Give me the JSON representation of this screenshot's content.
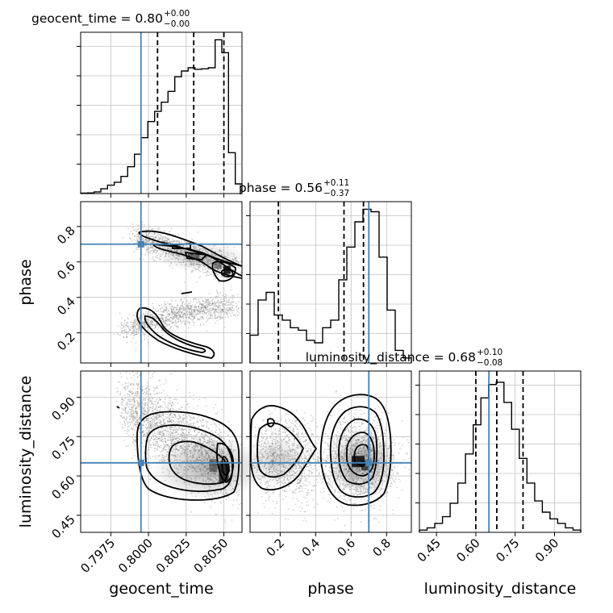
{
  "chart_data": {
    "type": "corner",
    "parameters": [
      "geocent_time",
      "phase",
      "luminosity_distance"
    ],
    "truths": {
      "geocent_time": 0.7995,
      "phase": 0.7,
      "luminosity_distance": 0.65
    },
    "colors": {
      "truth": "#4682b4",
      "hist": "#000000",
      "grid": "#c0c0c0",
      "scatter": "#7f7f7f"
    },
    "titles": [
      {
        "param": "geocent_time",
        "text": "geocent_time = 0.80",
        "sup": "+0.00",
        "sub": "−0.00"
      },
      {
        "param": "phase",
        "text": "phase = 0.56",
        "sup": "+0.11",
        "sub": "−0.37"
      },
      {
        "param": "luminosity_distance",
        "text": "luminosity_distance = 0.68",
        "sup": "+0.10",
        "sub": "−0.08"
      }
    ],
    "axes": {
      "geocent_time": {
        "range": [
          0.7955,
          0.8062
        ],
        "ticks": [
          0.7975,
          0.8,
          0.8025,
          0.805
        ],
        "tick_labels": [
          "0.7975",
          "0.8000",
          "0.8025",
          "0.8050"
        ]
      },
      "phase": {
        "range": [
          0.03,
          0.94
        ],
        "ticks": [
          0.2,
          0.4,
          0.6,
          0.8
        ],
        "tick_labels": [
          "0.2",
          "0.4",
          "0.6",
          "0.8"
        ]
      },
      "luminosity_distance": {
        "range": [
          0.385,
          1.0
        ],
        "ticks": [
          0.45,
          0.6,
          0.75,
          0.9
        ],
        "tick_labels": [
          "0.45",
          "0.60",
          "0.75",
          "0.90"
        ]
      }
    },
    "quantiles": {
      "geocent_time": [
        0.8006,
        0.803,
        0.805
      ],
      "phase": [
        0.19,
        0.56,
        0.67
      ],
      "luminosity_distance": [
        0.6,
        0.68,
        0.78
      ]
    },
    "histograms": {
      "geocent_time": {
        "range": [
          0.7955,
          0.8062
        ],
        "counts": [
          0.2,
          0.3,
          0.8,
          2.2,
          3.9,
          5.3,
          8.0,
          12.5,
          18.3,
          26.0,
          33.5,
          38.2,
          42.5,
          47.5,
          54.3,
          57.0,
          58.5,
          57.8,
          58.0,
          58.5,
          71.5,
          65.5,
          19.0,
          4.5
        ],
        "ylim": [
          0,
          75
        ]
      },
      "phase": {
        "range": [
          0.03,
          0.94
        ],
        "counts": [
          11,
          25,
          28,
          19,
          17,
          14,
          13,
          9,
          8,
          14,
          17,
          33,
          46,
          56,
          61,
          60,
          42,
          21,
          5,
          2
        ],
        "ylim": [
          0,
          64
        ]
      },
      "luminosity_distance": {
        "range": [
          0.385,
          1.0
        ],
        "counts": [
          1,
          2,
          4,
          7,
          13,
          22,
          35,
          48,
          60,
          66,
          67,
          58,
          46,
          33,
          22,
          14,
          9,
          6,
          4,
          2,
          1
        ],
        "ylim": [
          0,
          72
        ]
      }
    },
    "panels": [
      {
        "x": "geocent_time",
        "y": "phase"
      },
      {
        "x": "geocent_time",
        "y": "luminosity_distance"
      },
      {
        "x": "phase",
        "y": "luminosity_distance"
      }
    ],
    "grid": true
  }
}
